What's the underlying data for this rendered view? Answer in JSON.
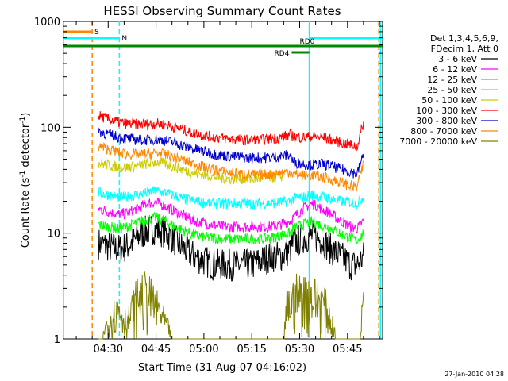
{
  "chart_data": {
    "type": "line",
    "title": "HESSI Observing Summary Count Rates",
    "xlabel": "Start Time (31-Aug-07 04:16:02)",
    "ylabel_main": "Count Rate (s",
    "ylabel_sup1": "-1",
    "ylabel_mid": " detector",
    "ylabel_sup2": "-1",
    "ylabel_end": ")",
    "footer": "27-Jan-2010 04:28",
    "x_start_min": 16.0,
    "x_end_min": 116.0,
    "x_ticks": [
      {
        "label": "04:30",
        "t": 30
      },
      {
        "label": "04:45",
        "t": 45
      },
      {
        "label": "05:00",
        "t": 60
      },
      {
        "label": "05:15",
        "t": 75
      },
      {
        "label": "05:30",
        "t": 90
      },
      {
        "label": "05:45",
        "t": 105
      }
    ],
    "y_scale": "log",
    "ylim": [
      1,
      1000
    ],
    "y_ticks": [
      {
        "label": "1",
        "v": 1
      },
      {
        "label": "10",
        "v": 10
      },
      {
        "label": "100",
        "v": 100
      },
      {
        "label": "1000",
        "v": 1000
      }
    ],
    "legend_header": [
      "Det 1,3,4,5,6,9,",
      "FDecim 1, Att 0"
    ],
    "series": [
      {
        "name": "3 - 6 keV",
        "color": "#000000",
        "t": [
          27,
          30,
          33,
          36,
          39,
          42,
          45,
          48,
          51,
          54,
          57,
          60,
          63,
          66,
          69,
          72,
          75,
          78,
          81,
          84,
          87,
          88,
          91,
          94,
          97,
          100,
          103,
          106,
          108,
          110
        ],
        "v": [
          8,
          7.5,
          7,
          7.5,
          9,
          10.5,
          11,
          10,
          8.5,
          7,
          6,
          5.5,
          5,
          5,
          5,
          5,
          5,
          5.5,
          6,
          6,
          7,
          8,
          9,
          9.5,
          8.5,
          7,
          6,
          5,
          5,
          6
        ]
      },
      {
        "name": "6 - 12 keV",
        "color": "#ff00ff",
        "t": [
          27,
          30,
          33,
          36,
          39,
          42,
          45,
          48,
          51,
          54,
          57,
          60,
          63,
          66,
          69,
          72,
          75,
          78,
          81,
          84,
          87,
          88,
          91,
          94,
          97,
          100,
          103,
          106,
          108,
          110
        ],
        "v": [
          17,
          16,
          15,
          15.5,
          17,
          19,
          19.5,
          18,
          16,
          14.5,
          13,
          12.5,
          12,
          11.5,
          11.5,
          11.5,
          11.5,
          11.5,
          11.5,
          12,
          13,
          14,
          17,
          19,
          17,
          15,
          13,
          11.5,
          11,
          13
        ]
      },
      {
        "name": "12 - 25 keV",
        "color": "#00ff00",
        "t": [
          27,
          30,
          33,
          36,
          39,
          42,
          45,
          48,
          51,
          54,
          57,
          60,
          63,
          66,
          69,
          72,
          75,
          78,
          81,
          84,
          87,
          88,
          91,
          94,
          97,
          100,
          103,
          106,
          108,
          110
        ],
        "v": [
          12,
          11.5,
          11,
          11.5,
          12.5,
          13.5,
          14,
          13,
          11.5,
          10.5,
          9.5,
          9.2,
          9,
          8.8,
          8.8,
          8.8,
          8.8,
          8.8,
          9,
          9.5,
          10,
          11,
          12,
          13,
          12,
          11,
          9.8,
          9,
          8.5,
          10
        ]
      },
      {
        "name": "25 - 50 keV",
        "color": "#00ffff",
        "t": [
          27,
          30,
          33,
          36,
          39,
          42,
          45,
          48,
          51,
          54,
          57,
          60,
          63,
          66,
          69,
          72,
          75,
          78,
          81,
          84,
          87,
          88,
          91,
          94,
          97,
          100,
          103,
          106,
          108,
          110
        ],
        "v": [
          24,
          23,
          22,
          22,
          23,
          24,
          25,
          24,
          22.5,
          21,
          20,
          19.5,
          19,
          19,
          19,
          19,
          19,
          19,
          19,
          19.5,
          20,
          21,
          22,
          23,
          22,
          21,
          20,
          19.5,
          19,
          22
        ]
      },
      {
        "name": "50 - 100 keV",
        "color": "#cccc00",
        "t": [
          27,
          30,
          33,
          36,
          39,
          42,
          45,
          48,
          51,
          54,
          57,
          60,
          63,
          66,
          69,
          72,
          75,
          78,
          81,
          84,
          85
        ],
        "v": [
          46,
          44,
          42,
          42,
          43,
          45,
          47,
          45,
          42,
          39,
          37,
          35.5,
          34,
          33,
          32.5,
          32.5,
          32.5,
          33,
          33.5,
          34,
          35
        ]
      },
      {
        "name": "100 - 300 keV",
        "color": "#ff0000",
        "t": [
          27,
          30,
          33,
          36,
          39,
          42,
          45,
          48,
          51,
          54,
          57,
          60,
          63,
          66,
          69,
          72,
          75,
          78,
          81,
          84,
          87,
          88,
          91,
          94,
          97,
          100,
          103,
          106,
          108,
          110
        ],
        "v": [
          128,
          120,
          112,
          108,
          107,
          107,
          108,
          106,
          100,
          94,
          88,
          84,
          81,
          79,
          77,
          76,
          76,
          76,
          78,
          80,
          85,
          82,
          80,
          82,
          80,
          76,
          72,
          68,
          66,
          110
        ]
      },
      {
        "name": "300 - 800 keV",
        "color": "#0000cc",
        "t": [
          27,
          30,
          33,
          36,
          39,
          42,
          45,
          48,
          51,
          54,
          57,
          60,
          63,
          66,
          69,
          72,
          75,
          78,
          81,
          84,
          87,
          88,
          91,
          94,
          97,
          100,
          103,
          106,
          108,
          110
        ],
        "v": [
          92,
          86,
          81,
          78,
          76,
          76,
          77,
          75,
          71,
          66,
          62,
          59,
          56,
          54,
          53,
          52,
          51.5,
          51.5,
          52,
          53,
          55,
          47,
          45,
          44,
          45,
          43,
          40,
          38,
          36,
          55
        ]
      },
      {
        "name": "800 - 7000 keV",
        "color": "#ff8800",
        "t": [
          27,
          30,
          33,
          36,
          39,
          42,
          45,
          48,
          51,
          54,
          57,
          60,
          63,
          66,
          69,
          72,
          75,
          78,
          81,
          84,
          87,
          88,
          91,
          94,
          97,
          100,
          103,
          106,
          108,
          110
        ],
        "v": [
          66,
          62,
          58,
          56,
          55,
          56,
          57,
          55,
          52,
          48,
          45,
          42,
          40,
          38,
          37,
          36,
          35.5,
          35.5,
          36,
          37,
          38,
          36,
          35,
          35,
          34,
          32,
          30,
          28,
          27,
          45
        ]
      },
      {
        "name": "7000 - 20000 keV",
        "color": "#808000",
        "t": [
          27,
          30,
          33,
          36,
          39,
          42,
          45,
          48,
          51,
          54,
          57,
          60,
          63,
          66,
          69,
          72,
          75,
          78,
          81,
          84,
          85,
          86,
          89,
          92,
          95,
          98,
          100,
          102,
          104,
          106,
          108,
          109,
          110
        ],
        "v": [
          1,
          1.5,
          2.2,
          1.5,
          2.8,
          3.2,
          2.3,
          1.5,
          1,
          1,
          1,
          1,
          1,
          1,
          1,
          1,
          1,
          1,
          1,
          1,
          1,
          2.2,
          3,
          3,
          2.8,
          2.3,
          1.5,
          1,
          1,
          1,
          1,
          1,
          3
        ]
      }
    ],
    "flags": [
      {
        "label": "S",
        "color": "#ff8800",
        "t0": 16.0,
        "t1": 25.0,
        "y_rank": 0
      },
      {
        "label": "N",
        "color": "#00ffff",
        "t0": 16.0,
        "t1": 33.5,
        "y_rank": 1
      },
      {
        "label": "",
        "color": "#00ffff",
        "t0": 93.0,
        "t1": 116.0,
        "y_rank": 1
      },
      {
        "label": "RD0",
        "color": "#008800",
        "t0": 16.0,
        "t1": 116.0,
        "y_rank": 2
      },
      {
        "label": "RD4",
        "color": "#008800",
        "t0": 87.5,
        "t1": 93.0,
        "y_rank": 3
      }
    ],
    "vlines": [
      {
        "t": 16.0,
        "color": "#00ffff",
        "dash": false
      },
      {
        "t": 25.0,
        "color": "#ff8800",
        "dash": true
      },
      {
        "t": 33.5,
        "color": "#00ffff",
        "dash": true
      },
      {
        "t": 93.0,
        "color": "#00ffff",
        "dash": false
      },
      {
        "t": 114.8,
        "color": "#ff8800",
        "dash": true
      },
      {
        "t": 115.3,
        "color": "#00ffff",
        "dash": false
      }
    ]
  }
}
